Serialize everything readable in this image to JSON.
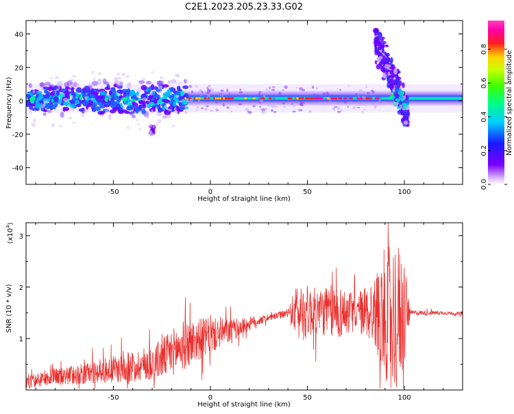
{
  "title": "C2E1.2023.205.23.33.G02",
  "chart_data": [
    {
      "type": "heatmap",
      "xlabel": "Height of straight line (km)",
      "ylabel": "Frequency (Hz)",
      "xlim": [
        -95,
        130
      ],
      "ylim": [
        -50,
        48
      ],
      "x_ticks": [
        -50,
        0,
        50,
        100
      ],
      "x_tick_labels": [
        "-50",
        "0",
        "50",
        "100"
      ],
      "y_ticks": [
        -40,
        -20,
        0,
        20,
        40
      ],
      "y_tick_labels": [
        "-40",
        "-20",
        "0",
        "20",
        "40"
      ],
      "colorbar": {
        "label": "Normalized spectral amplitude",
        "range": [
          0,
          0.97
        ],
        "ticks": [
          0.0,
          0.2,
          0.4,
          0.6,
          0.8
        ],
        "tick_labels": [
          "0.0",
          "0.2",
          "0.4",
          "0.6",
          "0.8"
        ],
        "colormap": "rainbow (white-purple-blue-cyan-green-yellow-red-magenta)"
      },
      "features": {
        "band_center_hz": 1,
        "band_halfwidth_hz": [
          -4,
          5
        ],
        "noisy_region_km": [
          -95,
          -15
        ],
        "burst_region_km": [
          85,
          102
        ],
        "burst_extent_hz": [
          -15,
          40
        ],
        "side_patch_km": [
          -31,
          -29
        ],
        "side_patch_hz": [
          -20,
          -15
        ]
      }
    },
    {
      "type": "line",
      "xlabel": "Height of straight line (km)",
      "ylabel": "SNR (10 * v/v)",
      "y_exponent_label": "(x10",
      "y_exponent_power": "4",
      "y_exponent_close": ")",
      "xlim": [
        -95,
        130
      ],
      "ylim": [
        0,
        3.25
      ],
      "x_ticks": [
        -50,
        0,
        50,
        100
      ],
      "x_tick_labels": [
        "-50",
        "0",
        "50",
        "100"
      ],
      "y_ticks": [
        1,
        2,
        3
      ],
      "y_tick_labels": [
        "1",
        "2",
        "3"
      ],
      "color": "#e8302e",
      "series": [
        {
          "envelope_x": [
            -95,
            -80,
            -60,
            -40,
            -25,
            -15,
            -5,
            10,
            25,
            35,
            42,
            50,
            60,
            70,
            80,
            88,
            95,
            100,
            103,
            110,
            120,
            130
          ],
          "envelope_y": [
            0.15,
            0.25,
            0.35,
            0.45,
            0.6,
            0.85,
            1.0,
            1.15,
            1.35,
            1.45,
            1.5,
            1.52,
            1.53,
            1.5,
            1.52,
            1.5,
            1.48,
            1.5,
            1.5,
            1.5,
            1.5,
            1.48
          ],
          "noise_x": [
            -95,
            -60,
            -30,
            -15,
            0,
            15,
            30,
            40,
            45,
            55,
            65,
            75,
            85,
            90,
            95,
            100,
            103,
            130
          ],
          "noise_amp": [
            0.12,
            0.22,
            0.35,
            0.5,
            0.35,
            0.18,
            0.06,
            0.08,
            0.6,
            0.45,
            0.55,
            0.35,
            0.7,
            1.3,
            1.5,
            1.2,
            0.05,
            0.03
          ]
        }
      ]
    }
  ]
}
